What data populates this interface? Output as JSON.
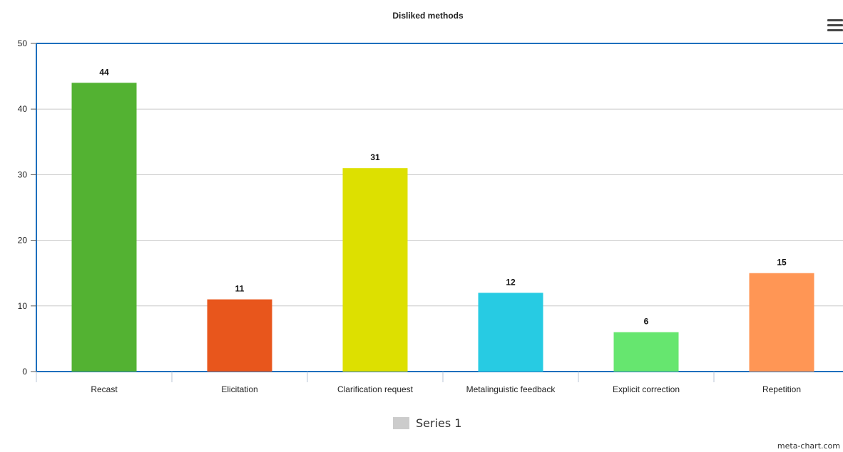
{
  "chart_data": {
    "type": "bar",
    "title": "Disliked methods",
    "categories": [
      "Recast",
      "Elicitation",
      "Clarification request",
      "Metalinguistic feedback",
      "Explicit correction",
      "Repetition"
    ],
    "series": [
      {
        "name": "Series 1",
        "values": [
          44,
          11,
          31,
          12,
          6,
          15
        ]
      }
    ],
    "bar_colors": [
      "#53b232",
      "#e8561c",
      "#dde000",
      "#27cbe3",
      "#66e66f",
      "#ff9655"
    ],
    "legend_swatch_color": "#cccccc",
    "axis_color": "#1e6fbd",
    "xlabel": "",
    "ylabel": "",
    "ylim": [
      0,
      50
    ],
    "yticks": [
      0,
      10,
      20,
      30,
      40,
      50
    ],
    "grid": true,
    "data_labels": true,
    "legend_position": "bottom-center"
  },
  "credit": "meta-chart.com"
}
